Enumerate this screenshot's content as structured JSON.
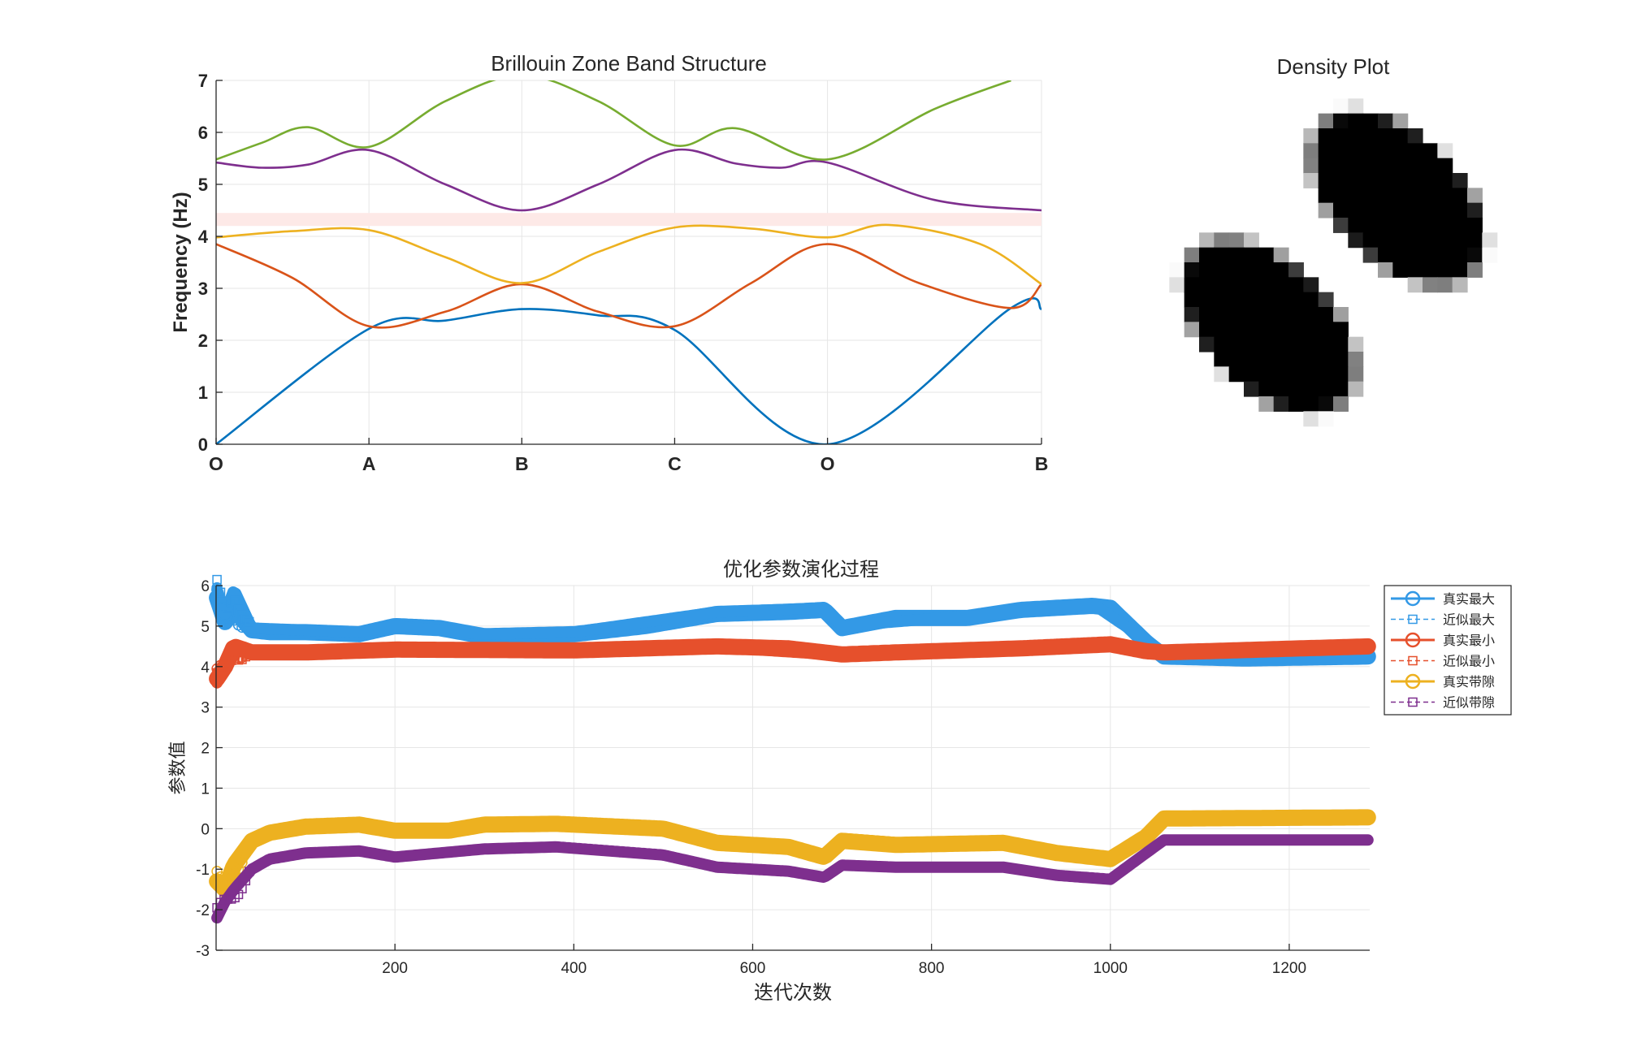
{
  "figure": {
    "colors": {
      "blue": "#0072BD",
      "orange": "#D95319",
      "yellow": "#EDB120",
      "purple": "#7E2F8E",
      "green": "#77AC30",
      "lightblue": "#3399E6",
      "red": "#E6502C",
      "gap_band": "#FDE9E7",
      "grid": "#E6E6E6",
      "axis": "#262626"
    }
  },
  "chart_data": [
    {
      "type": "line",
      "title": "Brillouin Zone Band Structure",
      "xlabel": "",
      "ylabel": "Frequency (Hz)",
      "ylim": [
        0,
        7
      ],
      "yticks": [
        "0",
        "1",
        "2",
        "3",
        "4",
        "5",
        "6",
        "7"
      ],
      "xticks": [
        "O",
        "A",
        "B",
        "C",
        "O",
        "B"
      ],
      "grid": true,
      "legend": "none",
      "bandgap_shade": [
        4.2,
        4.45
      ],
      "series": [
        {
          "color": "blue",
          "values": [
            [
              0,
              0
            ],
            [
              1,
              2.22
            ],
            [
              1.5,
              2.38
            ],
            [
              2,
              2.6
            ],
            [
              2.5,
              2.48
            ],
            [
              3,
              2.2
            ],
            [
              4,
              0
            ],
            [
              5.2,
              2.62
            ],
            [
              5.4,
              2.6
            ]
          ]
        },
        {
          "color": "orange",
          "values": [
            [
              0,
              3.85
            ],
            [
              0.5,
              3.2
            ],
            [
              1,
              2.27
            ],
            [
              1.5,
              2.55
            ],
            [
              2,
              3.08
            ],
            [
              2.5,
              2.55
            ],
            [
              3,
              2.27
            ],
            [
              3.5,
              3.1
            ],
            [
              4,
              3.85
            ],
            [
              4.6,
              3.1
            ],
            [
              5.2,
              2.62
            ],
            [
              5.4,
              3.08
            ]
          ]
        },
        {
          "color": "yellow",
          "values": [
            [
              0,
              3.98
            ],
            [
              0.5,
              4.1
            ],
            [
              1,
              4.12
            ],
            [
              1.5,
              3.6
            ],
            [
              2,
              3.1
            ],
            [
              2.5,
              3.7
            ],
            [
              3,
              4.17
            ],
            [
              3.5,
              4.15
            ],
            [
              4,
              3.98
            ],
            [
              4.4,
              4.22
            ],
            [
              5,
              3.85
            ],
            [
              5.4,
              3.08
            ]
          ]
        },
        {
          "color": "purple",
          "values": [
            [
              0,
              5.42
            ],
            [
              0.3,
              5.32
            ],
            [
              0.6,
              5.38
            ],
            [
              1,
              5.66
            ],
            [
              1.5,
              5.0
            ],
            [
              2,
              4.5
            ],
            [
              2.5,
              5.0
            ],
            [
              3,
              5.66
            ],
            [
              3.4,
              5.4
            ],
            [
              3.7,
              5.32
            ],
            [
              4,
              5.42
            ],
            [
              4.7,
              4.7
            ],
            [
              5.4,
              4.5
            ]
          ]
        },
        {
          "color": "green",
          "values": [
            [
              0,
              5.48
            ],
            [
              0.3,
              5.8
            ],
            [
              0.6,
              6.1
            ],
            [
              1,
              5.72
            ],
            [
              1.5,
              6.6
            ],
            [
              2,
              7.1
            ],
            [
              2.5,
              6.6
            ],
            [
              3,
              5.75
            ],
            [
              3.4,
              6.08
            ],
            [
              4,
              5.48
            ],
            [
              4.7,
              6.45
            ],
            [
              5.2,
              7.0
            ]
          ]
        }
      ]
    },
    {
      "type": "heatmap",
      "title": "Density Plot",
      "description_rows": 24,
      "description_cols": 24
    },
    {
      "type": "line",
      "title": "优化参数演化过程",
      "xlabel": "迭代次数",
      "ylabel": "参数值",
      "xlim": [
        0,
        1290
      ],
      "ylim": [
        -3,
        6
      ],
      "xticks": [
        "200",
        "400",
        "600",
        "800",
        "1000",
        "1200"
      ],
      "yticks": [
        "-3",
        "-2",
        "-1",
        "0",
        "1",
        "2",
        "3",
        "4",
        "5",
        "6"
      ],
      "grid": true,
      "legend": "top-right",
      "series": [
        {
          "name": "真实最大",
          "color": "lightblue",
          "marker": "circle",
          "values": [
            [
              1,
              5.7
            ],
            [
              10,
              5.1
            ],
            [
              20,
              5.4
            ],
            [
              40,
              4.9
            ],
            [
              60,
              4.85
            ],
            [
              100,
              4.85
            ],
            [
              160,
              4.8
            ],
            [
              200,
              5.0
            ],
            [
              250,
              4.95
            ],
            [
              300,
              4.75
            ],
            [
              400,
              4.8
            ],
            [
              480,
              5.0
            ],
            [
              560,
              5.3
            ],
            [
              640,
              5.35
            ],
            [
              680,
              5.4
            ],
            [
              700,
              4.95
            ],
            [
              760,
              5.2
            ],
            [
              840,
              5.2
            ],
            [
              900,
              5.4
            ],
            [
              980,
              5.5
            ],
            [
              1000,
              5.45
            ],
            [
              1040,
              4.6
            ],
            [
              1060,
              4.25
            ],
            [
              1150,
              4.2
            ],
            [
              1290,
              4.25
            ]
          ]
        },
        {
          "name": "近似最大",
          "color": "lightblue",
          "marker": "square",
          "values": [
            [
              1,
              5.9
            ],
            [
              10,
              5.3
            ],
            [
              20,
              5.9
            ],
            [
              40,
              4.95
            ],
            [
              100,
              4.9
            ],
            [
              160,
              4.85
            ],
            [
              200,
              5.0
            ],
            [
              300,
              4.8
            ],
            [
              400,
              4.85
            ],
            [
              560,
              5.35
            ],
            [
              680,
              5.45
            ],
            [
              700,
              5.0
            ],
            [
              840,
              5.25
            ],
            [
              980,
              5.55
            ],
            [
              1040,
              4.65
            ],
            [
              1060,
              4.25
            ],
            [
              1290,
              4.25
            ]
          ]
        },
        {
          "name": "真实最小",
          "color": "red",
          "marker": "circle",
          "values": [
            [
              1,
              3.7
            ],
            [
              10,
              4.0
            ],
            [
              20,
              4.5
            ],
            [
              40,
              4.35
            ],
            [
              100,
              4.35
            ],
            [
              200,
              4.42
            ],
            [
              400,
              4.4
            ],
            [
              560,
              4.5
            ],
            [
              640,
              4.45
            ],
            [
              700,
              4.3
            ],
            [
              760,
              4.35
            ],
            [
              900,
              4.45
            ],
            [
              1000,
              4.55
            ],
            [
              1040,
              4.38
            ],
            [
              1060,
              4.35
            ],
            [
              1290,
              4.5
            ]
          ]
        },
        {
          "name": "近似最小",
          "color": "red",
          "marker": "square",
          "values": [
            [
              1,
              3.6
            ],
            [
              10,
              3.95
            ],
            [
              20,
              4.45
            ],
            [
              40,
              4.3
            ],
            [
              100,
              4.3
            ],
            [
              200,
              4.4
            ],
            [
              400,
              4.38
            ],
            [
              560,
              4.48
            ],
            [
              700,
              4.28
            ],
            [
              1000,
              4.5
            ],
            [
              1060,
              4.3
            ],
            [
              1290,
              4.45
            ]
          ]
        },
        {
          "name": "真实带隙",
          "color": "yellow",
          "marker": "circle",
          "values": [
            [
              1,
              -1.3
            ],
            [
              10,
              -1.5
            ],
            [
              20,
              -0.9
            ],
            [
              40,
              -0.3
            ],
            [
              60,
              -0.1
            ],
            [
              100,
              0.05
            ],
            [
              160,
              0.1
            ],
            [
              200,
              -0.05
            ],
            [
              260,
              -0.05
            ],
            [
              300,
              0.1
            ],
            [
              380,
              0.12
            ],
            [
              500,
              0.0
            ],
            [
              560,
              -0.35
            ],
            [
              640,
              -0.45
            ],
            [
              680,
              -0.7
            ],
            [
              700,
              -0.3
            ],
            [
              760,
              -0.4
            ],
            [
              880,
              -0.35
            ],
            [
              940,
              -0.6
            ],
            [
              1000,
              -0.75
            ],
            [
              1040,
              -0.2
            ],
            [
              1060,
              0.25
            ],
            [
              1290,
              0.28
            ]
          ]
        },
        {
          "name": "近似带隙",
          "color": "purple",
          "marker": "square",
          "values": [
            [
              1,
              -2.2
            ],
            [
              10,
              -1.8
            ],
            [
              20,
              -1.5
            ],
            [
              40,
              -1.0
            ],
            [
              60,
              -0.75
            ],
            [
              100,
              -0.6
            ],
            [
              160,
              -0.55
            ],
            [
              200,
              -0.7
            ],
            [
              300,
              -0.5
            ],
            [
              380,
              -0.45
            ],
            [
              500,
              -0.65
            ],
            [
              560,
              -0.95
            ],
            [
              640,
              -1.05
            ],
            [
              680,
              -1.2
            ],
            [
              700,
              -0.9
            ],
            [
              760,
              -0.95
            ],
            [
              880,
              -0.95
            ],
            [
              940,
              -1.15
            ],
            [
              1000,
              -1.25
            ],
            [
              1040,
              -0.6
            ],
            [
              1060,
              -0.28
            ],
            [
              1290,
              -0.28
            ]
          ]
        }
      ]
    }
  ]
}
